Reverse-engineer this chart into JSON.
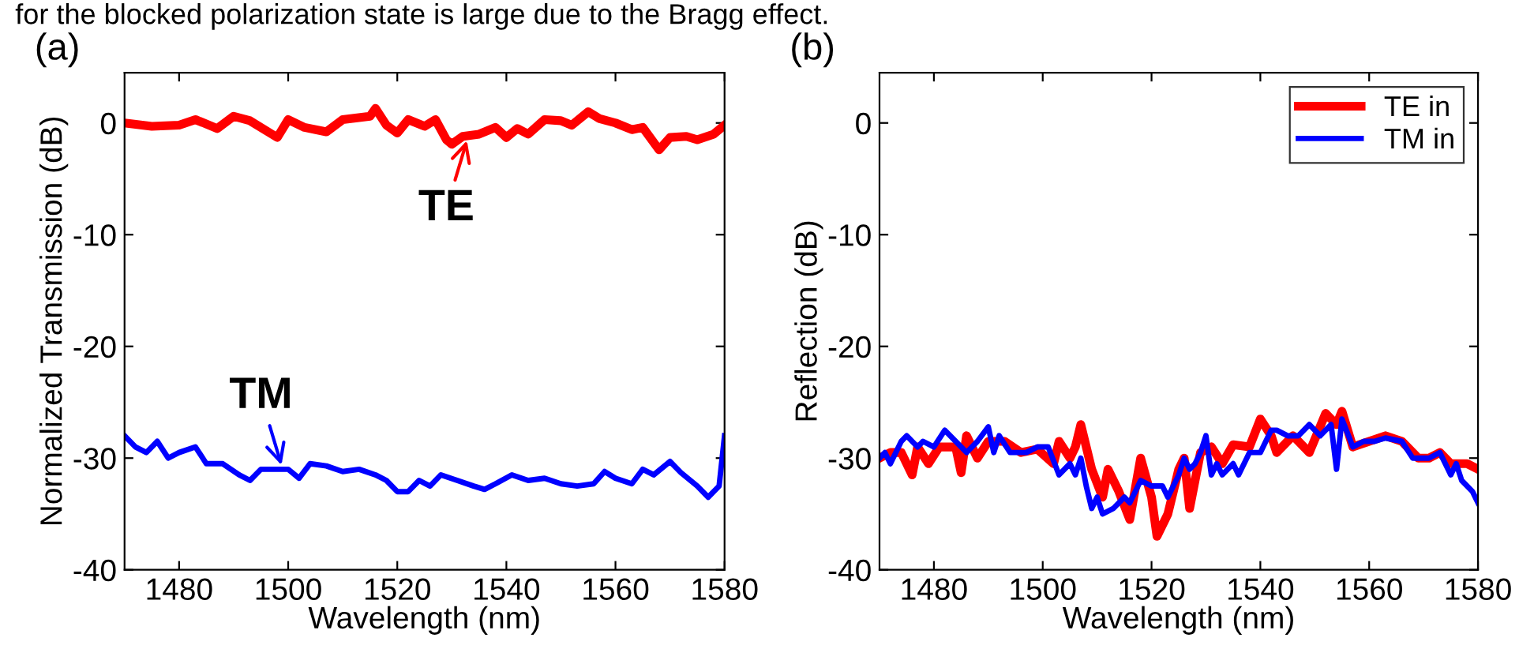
{
  "chart_data": [
    {
      "type": "line",
      "title": "(a)",
      "xlabel": "Wavelength (nm)",
      "ylabel": "Normalized Transmission (dB)",
      "xlim": [
        1470,
        1580
      ],
      "xticks": [
        1480,
        1500,
        1520,
        1540,
        1560,
        1580
      ],
      "ylim": [
        -40,
        4.5
      ],
      "yticks": [
        -40,
        -30,
        -20,
        -10,
        0
      ],
      "grid": false,
      "legend": false,
      "annotations": [
        "for the blocked polarization state is large due to the Bragg effect.",
        {
          "text": "TE",
          "x": 1533,
          "y": -1.2
        },
        {
          "text": "TM",
          "x": 1499,
          "y": -31
        }
      ],
      "series": [
        {
          "color": "#ff0000",
          "x": [
            1470,
            1475,
            1480,
            1483,
            1487,
            1490,
            1493,
            1498,
            1500,
            1503,
            1507,
            1510,
            1515,
            1516,
            1518,
            1520,
            1522,
            1525,
            1527,
            1529,
            1530,
            1532,
            1535,
            1538,
            1540,
            1542,
            1544,
            1547,
            1550,
            1552,
            1555,
            1557,
            1560,
            1563,
            1565,
            1568,
            1570,
            1573,
            1575,
            1578,
            1580
          ],
          "values": [
            0,
            -0.3,
            -0.2,
            0.3,
            -0.5,
            0.6,
            0.2,
            -1.3,
            0.3,
            -0.4,
            -0.8,
            0.3,
            0.6,
            1.3,
            -0.2,
            -0.9,
            0.3,
            -0.3,
            0.3,
            -1.5,
            -1.9,
            -1.2,
            -1.0,
            -0.4,
            -1.3,
            -0.5,
            -1.0,
            0.3,
            0.2,
            -0.2,
            1.0,
            0.4,
            0,
            -0.6,
            -0.4,
            -2.4,
            -1.3,
            -1.2,
            -1.5,
            -1.0,
            -0.2
          ]
        },
        {
          "color": "#0000ff",
          "x": [
            1470,
            1472,
            1474,
            1476,
            1478,
            1480,
            1483,
            1485,
            1488,
            1491,
            1493,
            1495,
            1498,
            1500,
            1502,
            1504,
            1507,
            1510,
            1513,
            1516,
            1518,
            1520,
            1522,
            1524,
            1526,
            1528,
            1531,
            1534,
            1536,
            1538,
            1541,
            1544,
            1547,
            1550,
            1553,
            1556,
            1558,
            1560,
            1563,
            1565,
            1567,
            1570,
            1572,
            1575,
            1577,
            1579,
            1580
          ],
          "values": [
            -28,
            -29,
            -29.5,
            -28.5,
            -30,
            -29.5,
            -29,
            -30.5,
            -30.5,
            -31.5,
            -32,
            -31,
            -31,
            -31,
            -31.8,
            -30.5,
            -30.7,
            -31.2,
            -31,
            -31.5,
            -32,
            -33,
            -33,
            -32,
            -32.5,
            -31.5,
            -32,
            -32.5,
            -32.8,
            -32.3,
            -31.5,
            -32,
            -31.8,
            -32.3,
            -32.5,
            -32.3,
            -31.2,
            -31.8,
            -32.3,
            -31,
            -31.5,
            -30.3,
            -31.3,
            -32.5,
            -33.5,
            -32.5,
            -28
          ]
        }
      ]
    },
    {
      "type": "line",
      "title": "(b)",
      "xlabel": "Wavelength (nm)",
      "ylabel": "Reflection (dB)",
      "xlim": [
        1470,
        1580
      ],
      "xticks": [
        1480,
        1500,
        1520,
        1540,
        1560,
        1580
      ],
      "ylim": [
        -40,
        4.5
      ],
      "yticks": [
        -40,
        -30,
        -20,
        -10,
        0
      ],
      "grid": false,
      "legend": "top right",
      "series": [
        {
          "name": "TE in",
          "color": "#ff0000",
          "x": [
            1470,
            1472,
            1474,
            1476,
            1477,
            1479,
            1481,
            1484,
            1485,
            1486,
            1488,
            1490,
            1493,
            1496,
            1499,
            1502,
            1503,
            1505,
            1506,
            1507,
            1509,
            1511,
            1512,
            1514,
            1516,
            1518,
            1520,
            1521,
            1523,
            1525,
            1526,
            1527,
            1529,
            1531,
            1533,
            1535,
            1538,
            1540,
            1542,
            1543,
            1546,
            1549,
            1552,
            1554,
            1555,
            1557,
            1560,
            1563,
            1566,
            1569,
            1571,
            1573,
            1575,
            1578,
            1580
          ],
          "values": [
            -30,
            -29.5,
            -29.5,
            -31.5,
            -29,
            -30.5,
            -29,
            -29,
            -31.3,
            -28,
            -30,
            -28.5,
            -28.5,
            -29.5,
            -29.2,
            -30.5,
            -28.5,
            -30,
            -29,
            -27,
            -31,
            -33.5,
            -31,
            -33,
            -35.5,
            -30,
            -33.5,
            -37,
            -35,
            -31,
            -30,
            -34.5,
            -29.5,
            -29,
            -30.5,
            -28.8,
            -29,
            -26.5,
            -28,
            -29.5,
            -28,
            -29.5,
            -26,
            -27,
            -25.8,
            -29,
            -28.5,
            -28,
            -28.5,
            -30,
            -30,
            -29.5,
            -30.5,
            -30.5,
            -31
          ]
        },
        {
          "name": "TM in",
          "color": "#0000ff",
          "x": [
            1470,
            1471,
            1472,
            1474,
            1475,
            1477,
            1478,
            1480,
            1482,
            1484,
            1486,
            1488,
            1490,
            1491,
            1492,
            1494,
            1497,
            1499,
            1501,
            1503,
            1505,
            1506,
            1507,
            1508,
            1509,
            1510,
            1511,
            1513,
            1515,
            1516,
            1517,
            1518,
            1520,
            1522,
            1523,
            1525,
            1526,
            1527,
            1528,
            1529,
            1530,
            1531,
            1532,
            1533,
            1535,
            1536,
            1538,
            1540,
            1541,
            1542,
            1543,
            1545,
            1547,
            1549,
            1551,
            1553,
            1554,
            1555,
            1557,
            1559,
            1561,
            1563,
            1566,
            1568,
            1571,
            1573,
            1575,
            1576,
            1577,
            1579,
            1580
          ],
          "values": [
            -30,
            -29.5,
            -30.5,
            -28.5,
            -28,
            -29,
            -28.5,
            -29,
            -27.5,
            -28.5,
            -29.5,
            -28.5,
            -27.2,
            -29.5,
            -28,
            -29.5,
            -29.5,
            -29,
            -29,
            -31.5,
            -30.5,
            -31.5,
            -30,
            -32.5,
            -34.5,
            -33.5,
            -35,
            -34.5,
            -33.5,
            -34,
            -33,
            -32,
            -32.5,
            -32.5,
            -33.5,
            -31.5,
            -30,
            -31,
            -30.5,
            -29.5,
            -28,
            -31.5,
            -30.5,
            -31.5,
            -30.5,
            -31.5,
            -29.5,
            -29.5,
            -28.5,
            -27.5,
            -27.5,
            -28,
            -28,
            -27,
            -28,
            -27,
            -31,
            -26.5,
            -29,
            -28.5,
            -28.5,
            -28.2,
            -28.5,
            -30,
            -30,
            -29.5,
            -31.5,
            -30.5,
            -32,
            -33,
            -34
          ]
        }
      ]
    }
  ]
}
